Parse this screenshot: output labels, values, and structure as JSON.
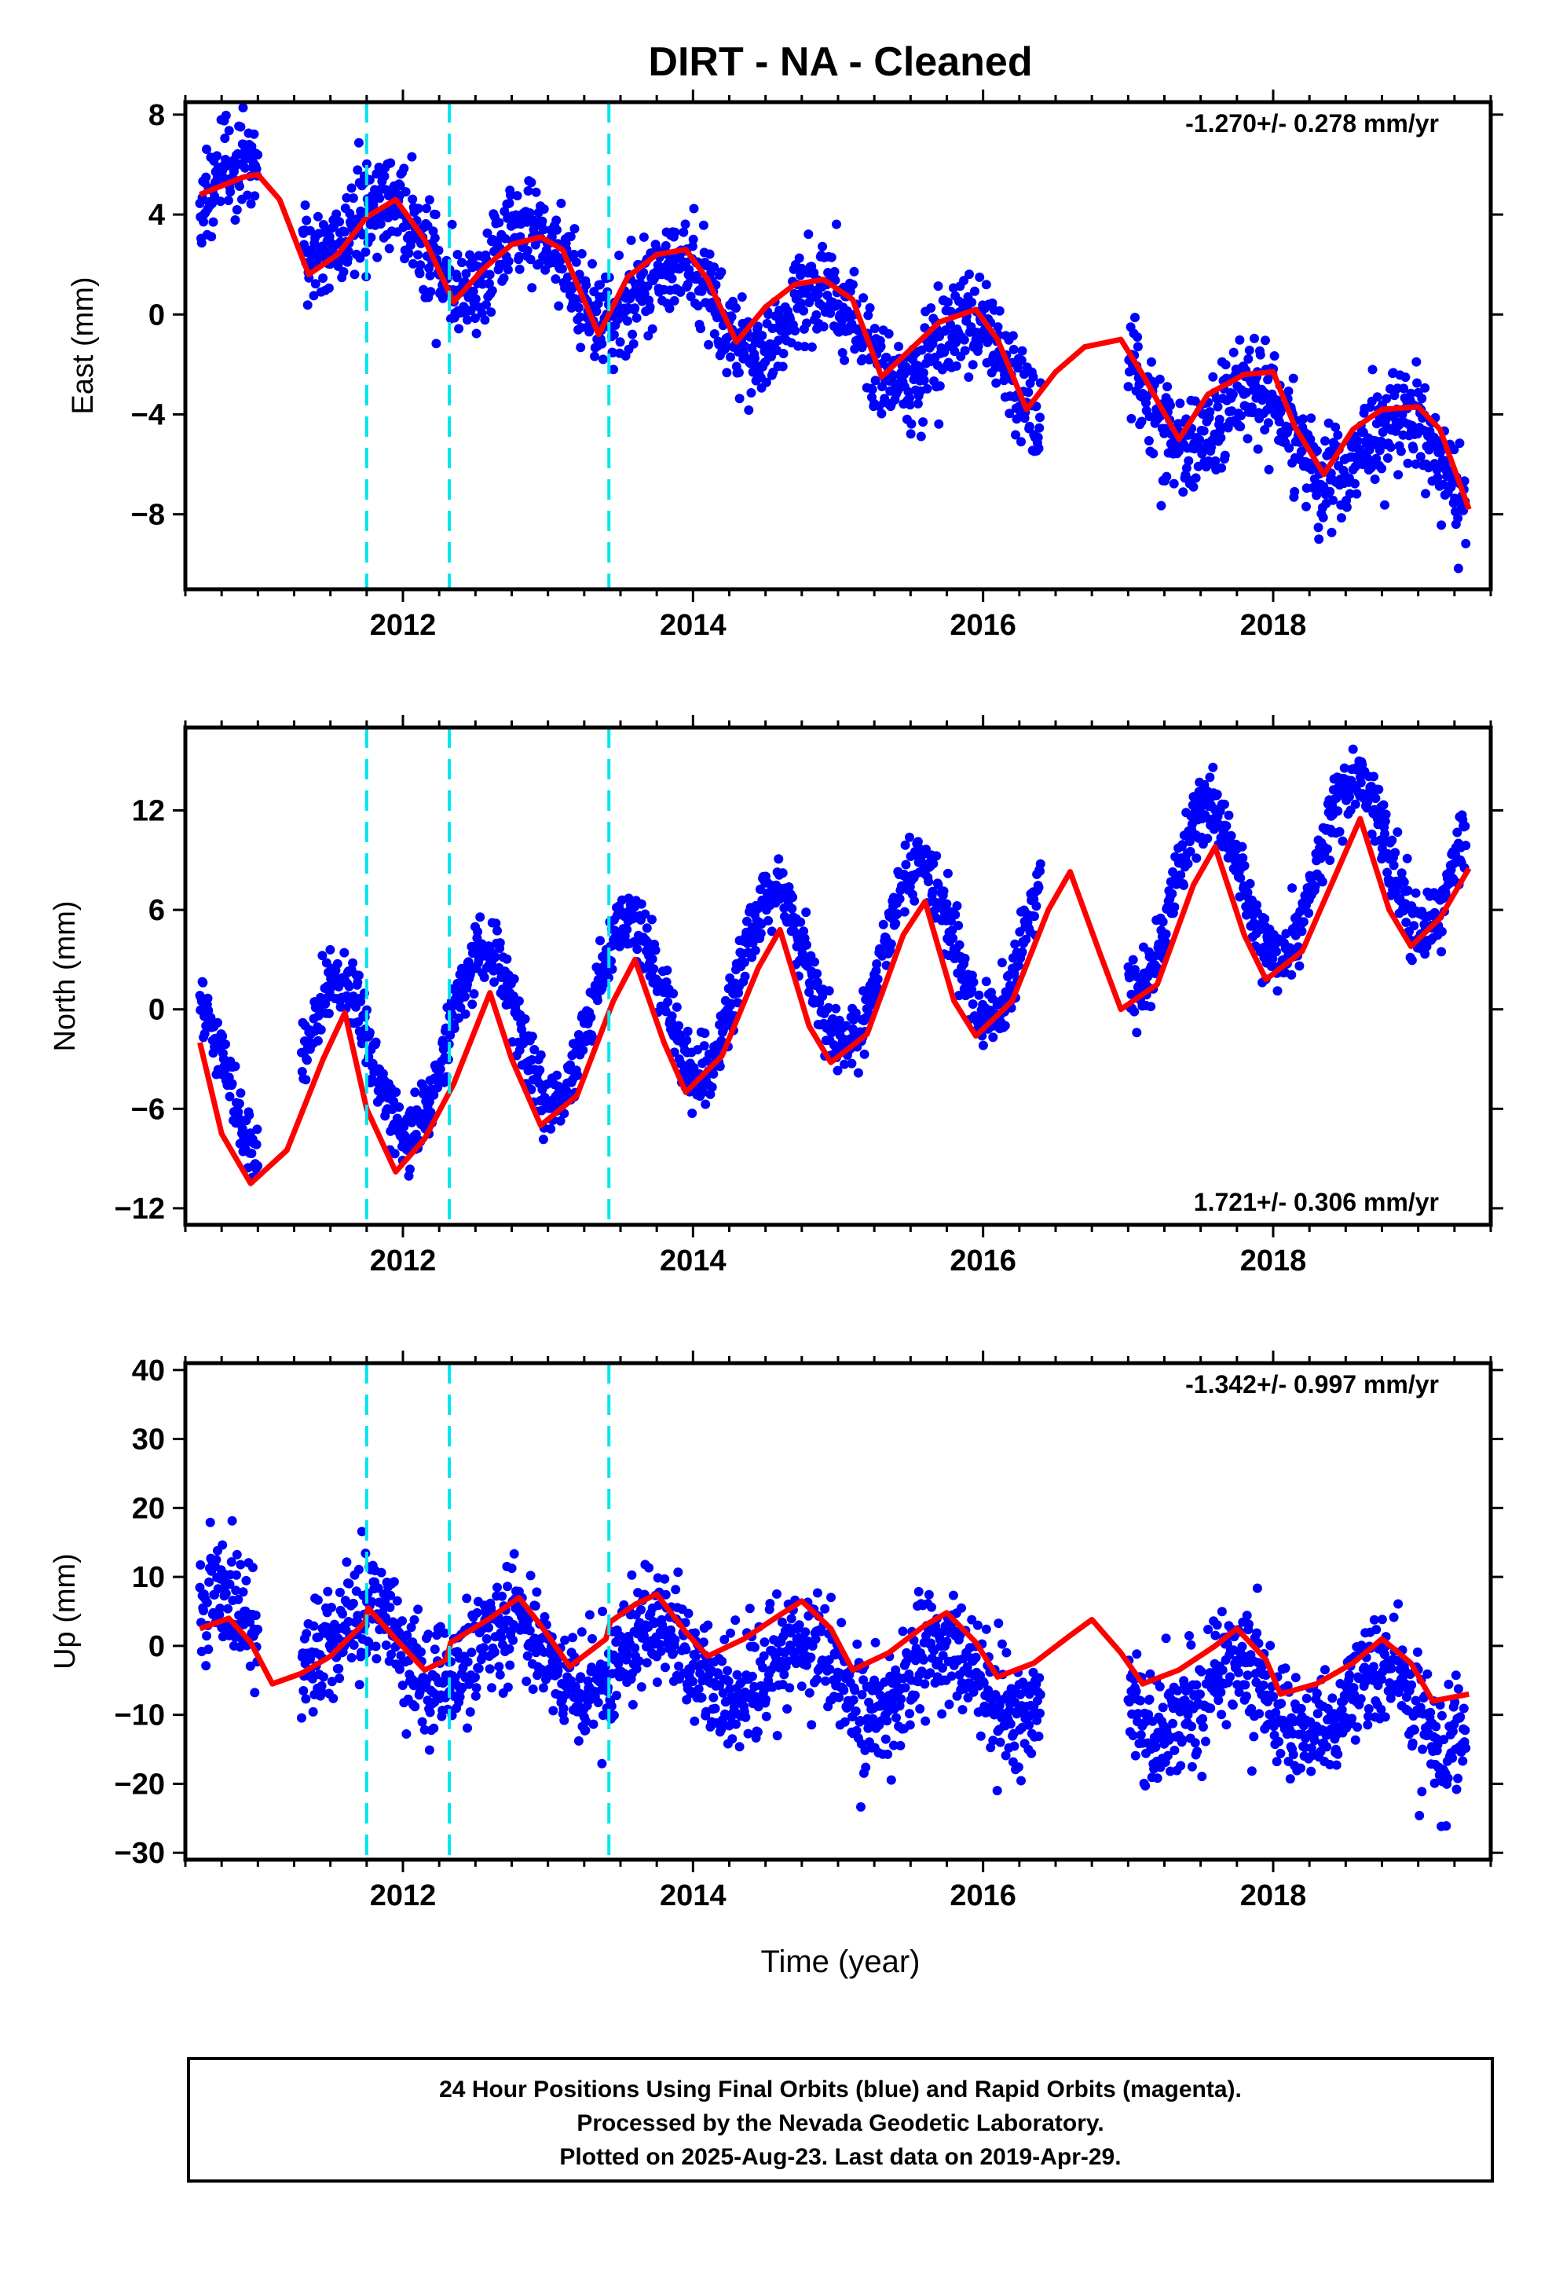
{
  "title": "DIRT  - NA - Cleaned",
  "xlabel": "Time (year)",
  "footer": {
    "line1": "24 Hour Positions Using Final Orbits (blue) and Rapid Orbits (magenta).",
    "line2": "Processed by the Nevada Geodetic Laboratory.",
    "line3": "Plotted on 2025-Aug-23. Last data on 2019-Apr-29."
  },
  "colors": {
    "points": "#0000ff",
    "model": "#ff0000",
    "events": "#00e5ee",
    "frame": "#000000"
  },
  "chart_data": [
    {
      "type": "scatter",
      "ylabel": "East (mm)",
      "rate": "-1.270+/- 0.278 mm/yr",
      "rate_position": "top-right",
      "xlim": [
        2010.5,
        2019.5
      ],
      "ylim": [
        -11,
        8.5
      ],
      "xticks": [
        2012,
        2014,
        2016,
        2018
      ],
      "xtick_labels": [
        "2012",
        "2014",
        "2016",
        "2018"
      ],
      "yticks": [
        8,
        4,
        0,
        -4,
        -8
      ],
      "ytick_labels": [
        "8",
        "4",
        "0",
        "−4",
        "−8"
      ],
      "event_lines": [
        2011.75,
        2012.32,
        2013.42
      ],
      "trend": {
        "intercept_at_2010_5": 5.0,
        "slope": -1.27
      },
      "seasonal": {
        "amplitude": 1.5,
        "peak_phase": 0.9
      },
      "noise_sd": 1.0,
      "gaps": [
        [
          2011.0,
          2011.3
        ],
        [
          2016.4,
          2017.0
        ]
      ],
      "model_points": [
        [
          2010.6,
          4.8
        ],
        [
          2010.9,
          5.5
        ],
        [
          2011.0,
          5.6
        ],
        [
          2011.15,
          4.6
        ],
        [
          2011.35,
          1.6
        ],
        [
          2011.55,
          2.4
        ],
        [
          2011.75,
          3.9
        ],
        [
          2011.95,
          4.6
        ],
        [
          2012.15,
          3.0
        ],
        [
          2012.35,
          0.5
        ],
        [
          2012.55,
          1.8
        ],
        [
          2012.75,
          2.8
        ],
        [
          2012.95,
          3.1
        ],
        [
          2013.1,
          2.6
        ],
        [
          2013.35,
          -0.8
        ],
        [
          2013.55,
          1.5
        ],
        [
          2013.75,
          2.4
        ],
        [
          2013.95,
          2.6
        ],
        [
          2014.1,
          1.4
        ],
        [
          2014.3,
          -1.1
        ],
        [
          2014.5,
          0.3
        ],
        [
          2014.7,
          1.2
        ],
        [
          2014.9,
          1.4
        ],
        [
          2015.1,
          0.6
        ],
        [
          2015.3,
          -2.5
        ],
        [
          2015.5,
          -1.4
        ],
        [
          2015.7,
          -0.3
        ],
        [
          2015.95,
          0.2
        ],
        [
          2016.1,
          -1.0
        ],
        [
          2016.3,
          -3.8
        ],
        [
          2016.5,
          -2.3
        ],
        [
          2016.7,
          -1.3
        ],
        [
          2016.95,
          -1.0
        ],
        [
          2017.1,
          -2.4
        ],
        [
          2017.35,
          -5.0
        ],
        [
          2017.55,
          -3.2
        ],
        [
          2017.8,
          -2.4
        ],
        [
          2018.0,
          -2.3
        ],
        [
          2018.15,
          -4.5
        ],
        [
          2018.35,
          -6.4
        ],
        [
          2018.55,
          -4.6
        ],
        [
          2018.75,
          -3.8
        ],
        [
          2019.0,
          -3.7
        ],
        [
          2019.15,
          -4.6
        ],
        [
          2019.35,
          -7.8
        ]
      ]
    },
    {
      "type": "scatter",
      "ylabel": "North (mm)",
      "rate": "1.721+/- 0.306 mm/yr",
      "rate_position": "bottom-right",
      "xlim": [
        2010.5,
        2019.5
      ],
      "ylim": [
        -13,
        17
      ],
      "xticks": [
        2012,
        2014,
        2016,
        2018
      ],
      "xtick_labels": [
        "2012",
        "2014",
        "2016",
        "2018"
      ],
      "yticks": [
        12,
        6,
        0,
        -6,
        -12
      ],
      "ytick_labels": [
        "12",
        "6",
        "0",
        "−6",
        "−12"
      ],
      "event_lines": [
        2011.75,
        2012.32,
        2013.42
      ],
      "trend": {
        "intercept_at_2010_5": -5.0,
        "slope": 1.72
      },
      "seasonal": {
        "amplitude": 5.0,
        "peak_phase": 0.55
      },
      "noise_sd": 1.0,
      "gaps": [
        [
          2011.0,
          2011.3
        ],
        [
          2016.4,
          2017.0
        ]
      ],
      "model_points": [
        [
          2010.6,
          -2.0
        ],
        [
          2010.75,
          -7.5
        ],
        [
          2010.95,
          -10.5
        ],
        [
          2011.2,
          -8.5
        ],
        [
          2011.45,
          -3.0
        ],
        [
          2011.6,
          -0.2
        ],
        [
          2011.75,
          -6.0
        ],
        [
          2011.95,
          -9.8
        ],
        [
          2012.15,
          -7.8
        ],
        [
          2012.35,
          -4.5
        ],
        [
          2012.6,
          1.0
        ],
        [
          2012.75,
          -3.0
        ],
        [
          2012.95,
          -7.0
        ],
        [
          2013.2,
          -5.2
        ],
        [
          2013.45,
          0.5
        ],
        [
          2013.6,
          3.0
        ],
        [
          2013.8,
          -2.0
        ],
        [
          2013.95,
          -5.0
        ],
        [
          2014.2,
          -2.8
        ],
        [
          2014.45,
          2.5
        ],
        [
          2014.6,
          4.8
        ],
        [
          2014.8,
          -1.0
        ],
        [
          2014.95,
          -3.2
        ],
        [
          2015.2,
          -1.5
        ],
        [
          2015.45,
          4.5
        ],
        [
          2015.6,
          6.5
        ],
        [
          2015.8,
          0.5
        ],
        [
          2015.95,
          -1.6
        ],
        [
          2016.2,
          0.5
        ],
        [
          2016.45,
          6.0
        ],
        [
          2016.6,
          8.3
        ],
        [
          2016.8,
          3.5
        ],
        [
          2016.95,
          0.0
        ],
        [
          2017.2,
          1.5
        ],
        [
          2017.45,
          7.5
        ],
        [
          2017.6,
          9.8
        ],
        [
          2017.8,
          4.5
        ],
        [
          2017.95,
          1.8
        ],
        [
          2018.2,
          3.5
        ],
        [
          2018.45,
          8.5
        ],
        [
          2018.6,
          11.5
        ],
        [
          2018.8,
          6.0
        ],
        [
          2018.95,
          3.8
        ],
        [
          2019.15,
          5.5
        ],
        [
          2019.35,
          8.5
        ]
      ]
    },
    {
      "type": "scatter",
      "ylabel": "Up (mm)",
      "rate": "-1.342+/- 0.997 mm/yr",
      "rate_position": "top-right",
      "xlim": [
        2010.5,
        2019.5
      ],
      "ylim": [
        -31,
        41
      ],
      "xticks": [
        2012,
        2014,
        2016,
        2018
      ],
      "xtick_labels": [
        "2012",
        "2014",
        "2016",
        "2018"
      ],
      "yticks": [
        40,
        30,
        20,
        10,
        0,
        -10,
        -20,
        -30
      ],
      "ytick_labels": [
        "40",
        "30",
        "20",
        "10",
        "0",
        "−10",
        "−20",
        "−30"
      ],
      "event_lines": [
        2011.75,
        2012.32,
        2013.42
      ],
      "trend": {
        "intercept_at_2010_5": 2.0,
        "slope": -1.34
      },
      "seasonal": {
        "amplitude": 5.0,
        "peak_phase": 0.75
      },
      "noise_sd": 4.2,
      "gaps": [
        [
          2011.0,
          2011.3
        ],
        [
          2016.4,
          2017.0
        ]
      ],
      "model_points": [
        [
          2010.6,
          2.5
        ],
        [
          2010.8,
          4.0
        ],
        [
          2010.95,
          0.5
        ],
        [
          2011.1,
          -5.5
        ],
        [
          2011.3,
          -4.0
        ],
        [
          2011.5,
          -1.5
        ],
        [
          2011.74,
          3.5
        ],
        [
          2011.76,
          5.5
        ],
        [
          2011.95,
          1.0
        ],
        [
          2012.15,
          -3.5
        ],
        [
          2012.3,
          -2.0
        ],
        [
          2012.33,
          0.5
        ],
        [
          2012.6,
          4.0
        ],
        [
          2012.8,
          7.0
        ],
        [
          2012.95,
          3.0
        ],
        [
          2013.15,
          -3.0
        ],
        [
          2013.4,
          1.0
        ],
        [
          2013.43,
          3.5
        ],
        [
          2013.6,
          6.0
        ],
        [
          2013.75,
          7.5
        ],
        [
          2013.95,
          2.0
        ],
        [
          2014.1,
          -1.5
        ],
        [
          2014.35,
          1.0
        ],
        [
          2014.6,
          4.5
        ],
        [
          2014.75,
          6.5
        ],
        [
          2014.95,
          2.5
        ],
        [
          2015.1,
          -3.5
        ],
        [
          2015.35,
          -1.0
        ],
        [
          2015.6,
          3.0
        ],
        [
          2015.75,
          4.8
        ],
        [
          2015.95,
          0.5
        ],
        [
          2016.1,
          -4.5
        ],
        [
          2016.35,
          -2.5
        ],
        [
          2016.6,
          1.5
        ],
        [
          2016.75,
          3.8
        ],
        [
          2016.95,
          -1.0
        ],
        [
          2017.1,
          -5.5
        ],
        [
          2017.35,
          -3.5
        ],
        [
          2017.6,
          0.0
        ],
        [
          2017.75,
          2.5
        ],
        [
          2017.95,
          -2.0
        ],
        [
          2018.05,
          -7.0
        ],
        [
          2018.3,
          -5.5
        ],
        [
          2018.55,
          -2.5
        ],
        [
          2018.75,
          1.0
        ],
        [
          2018.95,
          -2.5
        ],
        [
          2019.1,
          -8.0
        ],
        [
          2019.35,
          -7.0
        ]
      ]
    }
  ]
}
